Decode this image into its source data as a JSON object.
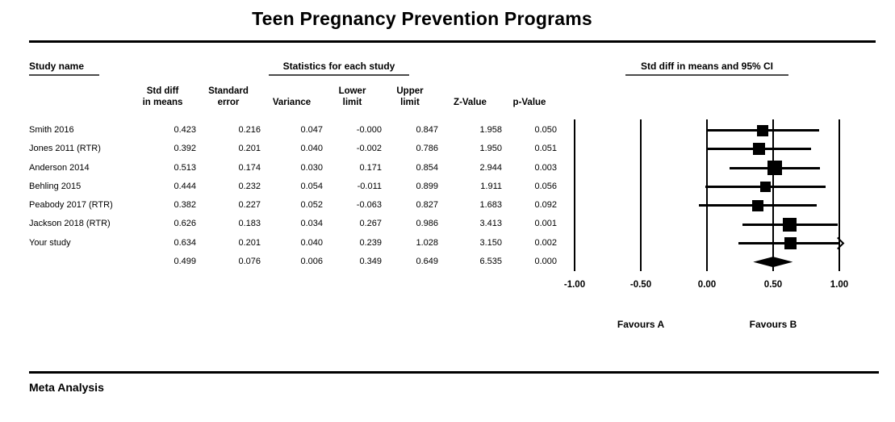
{
  "title": "Teen Pregnancy Prevention Programs",
  "footer": {
    "label": "Meta Analysis"
  },
  "table": {
    "section_headers": {
      "study_name": "Study name",
      "statistics": "Statistics for each study",
      "plot": "Std diff in means and 95% CI"
    },
    "columns": [
      {
        "label": ""
      },
      {
        "label": "Std diff\nin means"
      },
      {
        "label": "Standard\nerror"
      },
      {
        "label": "Variance"
      },
      {
        "label": "Lower\nlimit"
      },
      {
        "label": "Upper\nlimit"
      },
      {
        "label": "Z-Value"
      },
      {
        "label": "p-Value"
      }
    ],
    "rows": [
      {
        "cells": [
          "Smith 2016",
          "0.423",
          "0.216",
          "0.047",
          "-0.000",
          "0.847",
          "1.958",
          "0.050"
        ]
      },
      {
        "cells": [
          "Jones 2011 (RTR)",
          "0.392",
          "0.201",
          "0.040",
          "-0.002",
          "0.786",
          "1.950",
          "0.051"
        ]
      },
      {
        "cells": [
          "Anderson 2014",
          "0.513",
          "0.174",
          "0.030",
          "0.171",
          "0.854",
          "2.944",
          "0.003"
        ]
      },
      {
        "cells": [
          "Behling 2015",
          "0.444",
          "0.232",
          "0.054",
          "-0.011",
          "0.899",
          "1.911",
          "0.056"
        ]
      },
      {
        "cells": [
          "Peabody 2017 (RTR)",
          "0.382",
          "0.227",
          "0.052",
          "-0.063",
          "0.827",
          "1.683",
          "0.092"
        ]
      },
      {
        "cells": [
          "Jackson 2018 (RTR)",
          "0.626",
          "0.183",
          "0.034",
          "0.267",
          "0.986",
          "3.413",
          "0.001"
        ]
      },
      {
        "cells": [
          "Your study",
          "0.634",
          "0.201",
          "0.040",
          "0.239",
          "1.028",
          "3.150",
          "0.002"
        ]
      },
      {
        "cells": [
          "",
          "0.499",
          "0.076",
          "0.006",
          "0.349",
          "0.649",
          "6.535",
          "0.000"
        ]
      }
    ]
  },
  "chart_data": {
    "type": "scatter",
    "chart_kind": "forest-plot",
    "title": "Std diff in means and 95% CI",
    "xlim": [
      -1.0,
      1.0
    ],
    "grid": "vertical-lines-only",
    "marker_color": "#000000",
    "x_ticks": [
      {
        "label": "-1.00",
        "value": -1.0
      },
      {
        "label": "-0.50",
        "value": -0.5
      },
      {
        "label": "0.00",
        "value": 0.0
      },
      {
        "label": "0.50",
        "value": 0.5
      },
      {
        "label": "1.00",
        "value": 1.0
      }
    ],
    "studies": [
      {
        "name": "Smith 2016",
        "est": 0.423,
        "lower": -0.0,
        "upper": 0.847,
        "se": 0.216
      },
      {
        "name": "Jones 2011 (RTR)",
        "est": 0.392,
        "lower": -0.002,
        "upper": 0.786,
        "se": 0.201
      },
      {
        "name": "Anderson 2014",
        "est": 0.513,
        "lower": 0.171,
        "upper": 0.854,
        "se": 0.174
      },
      {
        "name": "Behling 2015",
        "est": 0.444,
        "lower": -0.011,
        "upper": 0.899,
        "se": 0.232
      },
      {
        "name": "Peabody 2017 (RTR)",
        "est": 0.382,
        "lower": -0.063,
        "upper": 0.827,
        "se": 0.227
      },
      {
        "name": "Jackson 2018 (RTR)",
        "est": 0.626,
        "lower": 0.267,
        "upper": 0.986,
        "se": 0.183
      },
      {
        "name": "Your study",
        "est": 0.634,
        "lower": 0.239,
        "upper": 1.028,
        "se": 0.201
      }
    ],
    "summary": {
      "est": 0.499,
      "lower": 0.349,
      "upper": 0.649,
      "marker": "diamond"
    },
    "favours_a": "Favours A",
    "favours_b": "Favours B"
  }
}
